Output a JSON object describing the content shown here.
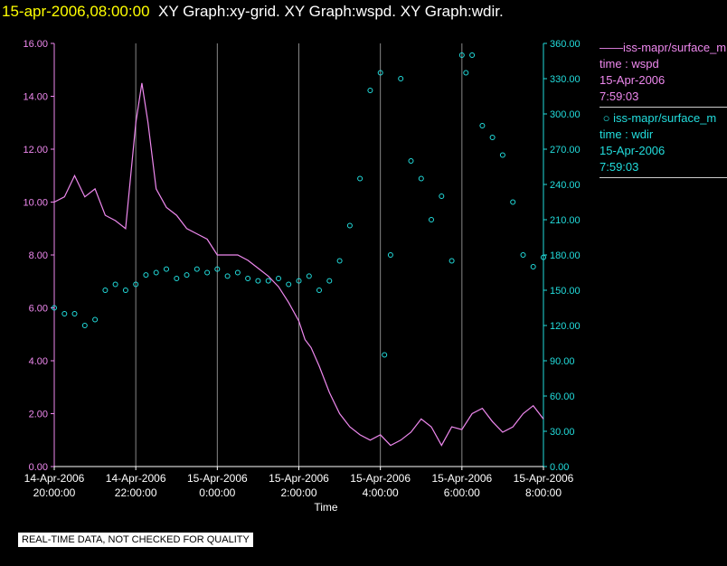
{
  "header": {
    "timestamp": "15-apr-2006,08:00:00",
    "graphs": "XY Graph:xy-grid.  XY Graph:wspd.  XY Graph:wdir."
  },
  "legend": [
    {
      "marker": "——",
      "line1": "iss-mapr/surface_m",
      "line2": "time : wspd",
      "line3": "15-Apr-2006",
      "line4": "7:59:03",
      "color": "#ee88ee"
    },
    {
      "marker": "○",
      "line1": "iss-mapr/surface_m",
      "line2": "time : wdir",
      "line3": "15-Apr-2006",
      "line4": "7:59:03",
      "color": "#22dddd"
    }
  ],
  "quality_notice": "REAL-TIME DATA, NOT CHECKED FOR QUALITY",
  "chart_data": {
    "type": "line",
    "xlabel": "Time",
    "x_ticks": [
      {
        "t": 20.0,
        "date": "14-Apr-2006",
        "time": "20:00:00"
      },
      {
        "t": 22.0,
        "date": "14-Apr-2006",
        "time": "22:00:00"
      },
      {
        "t": 24.0,
        "date": "15-Apr-2006",
        "time": "0:00:00"
      },
      {
        "t": 26.0,
        "date": "15-Apr-2006",
        "time": "2:00:00"
      },
      {
        "t": 28.0,
        "date": "15-Apr-2006",
        "time": "4:00:00"
      },
      {
        "t": 30.0,
        "date": "15-Apr-2006",
        "time": "6:00:00"
      },
      {
        "t": 32.0,
        "date": "15-Apr-2006",
        "time": "8:00:00"
      }
    ],
    "xlim": [
      20.0,
      32.0
    ],
    "y_left_ticks": [
      "0.00",
      "2.00",
      "4.00",
      "6.00",
      "8.00",
      "10.00",
      "12.00",
      "14.00",
      "16.00"
    ],
    "y_left_lim": [
      0,
      16
    ],
    "y_right_ticks": [
      "0.00",
      "30.00",
      "60.00",
      "90.00",
      "120.00",
      "150.00",
      "180.00",
      "210.00",
      "240.00",
      "270.00",
      "300.00",
      "330.00",
      "360.00"
    ],
    "y_right_lim": [
      0,
      360
    ],
    "grid": "vertical",
    "wspd": {
      "name": "time : wspd",
      "color": "#ee88ee",
      "x": [
        20.0,
        20.25,
        20.5,
        20.75,
        21.0,
        21.25,
        21.5,
        21.75,
        22.0,
        22.15,
        22.3,
        22.5,
        22.75,
        23.0,
        23.25,
        23.5,
        23.75,
        24.0,
        24.25,
        24.5,
        24.75,
        25.0,
        25.25,
        25.5,
        25.75,
        26.0,
        26.15,
        26.3,
        26.5,
        26.75,
        27.0,
        27.25,
        27.5,
        27.75,
        28.0,
        28.25,
        28.5,
        28.75,
        29.0,
        29.25,
        29.5,
        29.75,
        30.0,
        30.25,
        30.5,
        30.75,
        31.0,
        31.25,
        31.5,
        31.75,
        32.0
      ],
      "y": [
        10.0,
        10.2,
        11.0,
        10.2,
        10.5,
        9.5,
        9.3,
        9.0,
        13.0,
        14.5,
        13.0,
        10.5,
        9.8,
        9.5,
        9.0,
        8.8,
        8.6,
        8.0,
        8.0,
        8.0,
        7.8,
        7.5,
        7.2,
        6.8,
        6.2,
        5.5,
        4.8,
        4.5,
        3.8,
        2.8,
        2.0,
        1.5,
        1.2,
        1.0,
        1.2,
        0.8,
        1.0,
        1.3,
        1.8,
        1.5,
        0.8,
        1.5,
        1.4,
        2.0,
        2.2,
        1.7,
        1.3,
        1.5,
        2.0,
        2.3,
        1.8
      ]
    },
    "wdir": {
      "name": "time : wdir",
      "color": "#22dddd",
      "x": [
        20.0,
        20.25,
        20.5,
        20.75,
        21.0,
        21.25,
        21.5,
        21.75,
        22.0,
        22.25,
        22.5,
        22.75,
        23.0,
        23.25,
        23.5,
        23.75,
        24.0,
        24.25,
        24.5,
        24.75,
        25.0,
        25.25,
        25.5,
        25.75,
        26.0,
        26.25,
        26.5,
        26.75,
        27.0,
        27.25,
        27.5,
        27.75,
        28.0,
        28.1,
        28.25,
        28.5,
        28.75,
        29.0,
        29.25,
        29.5,
        29.75,
        30.0,
        30.1,
        30.25,
        30.5,
        30.75,
        31.0,
        31.25,
        31.5,
        31.75,
        32.0
      ],
      "y": [
        135,
        130,
        130,
        120,
        125,
        150,
        155,
        150,
        155,
        163,
        165,
        168,
        160,
        163,
        168,
        165,
        168,
        162,
        165,
        160,
        158,
        158,
        160,
        155,
        158,
        162,
        150,
        158,
        175,
        205,
        245,
        320,
        335,
        95,
        180,
        330,
        260,
        245,
        210,
        230,
        175,
        350,
        335,
        350,
        290,
        280,
        265,
        225,
        180,
        170,
        178
      ]
    }
  }
}
